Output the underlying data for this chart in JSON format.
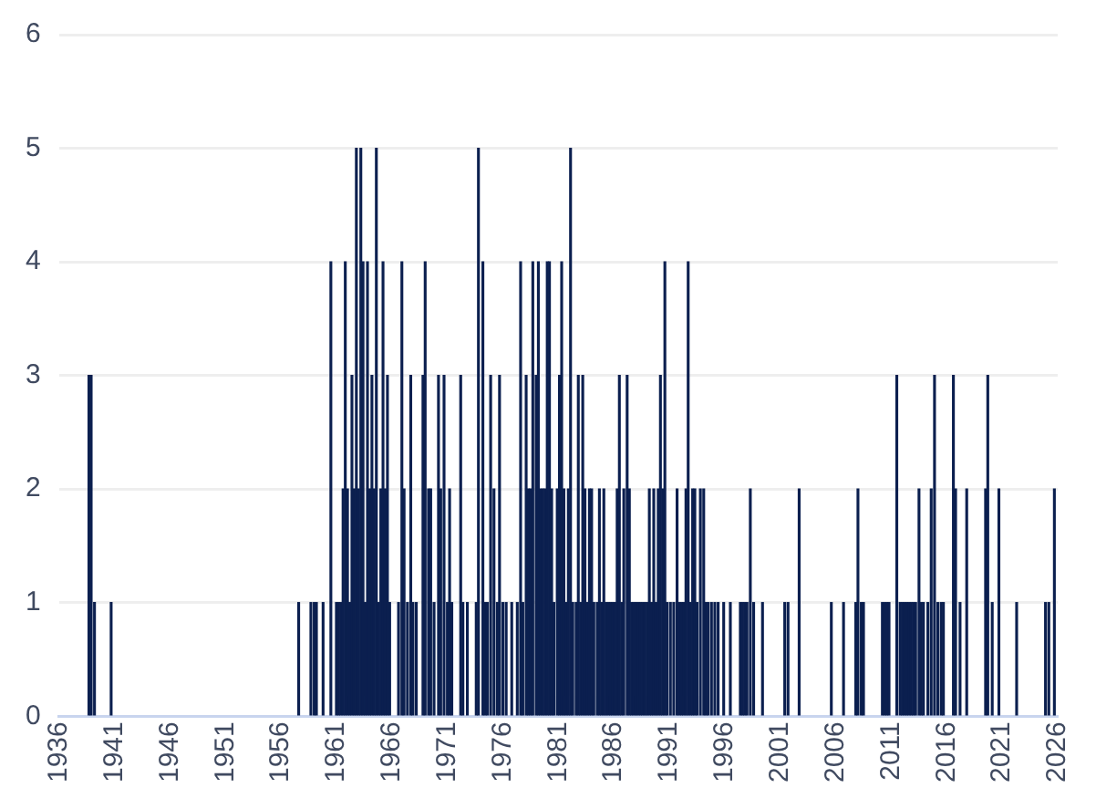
{
  "chart_data": {
    "type": "bar",
    "color": "#0b1f4f",
    "xlim": [
      1936,
      2026
    ],
    "xticks": [
      1936,
      1941,
      1946,
      1951,
      1956,
      1961,
      1966,
      1971,
      1976,
      1981,
      1986,
      1991,
      1996,
      2001,
      2006,
      2011,
      2016,
      2021,
      2026
    ],
    "ylim": [
      0,
      6
    ],
    "yticks": [
      0,
      1,
      2,
      3,
      4,
      5,
      6
    ],
    "grid": "y",
    "x": [
      1938.7,
      1938.9,
      1939.2,
      1940.7,
      1957.6,
      1958.7,
      1959.0,
      1959.2,
      1959.8,
      1960.5,
      1961.0,
      1961.2,
      1961.4,
      1961.6,
      1961.8,
      1962.0,
      1962.2,
      1962.4,
      1962.6,
      1962.8,
      1963.0,
      1963.2,
      1963.4,
      1963.6,
      1963.8,
      1964.0,
      1964.2,
      1964.4,
      1964.6,
      1964.8,
      1965.0,
      1965.2,
      1965.4,
      1965.6,
      1965.8,
      1966.6,
      1966.9,
      1967.1,
      1967.4,
      1967.7,
      1967.9,
      1968.2,
      1968.8,
      1969.0,
      1969.3,
      1969.5,
      1969.8,
      1970.2,
      1970.4,
      1970.7,
      1971.0,
      1971.2,
      1971.4,
      1972.2,
      1972.4,
      1972.8,
      1973.6,
      1973.8,
      1974.2,
      1974.4,
      1974.6,
      1974.9,
      1975.2,
      1975.5,
      1975.7,
      1976.0,
      1976.3,
      1976.8,
      1977.3,
      1977.6,
      1977.8,
      1978.1,
      1978.3,
      1978.5,
      1978.7,
      1979.0,
      1979.2,
      1979.4,
      1979.6,
      1979.8,
      1980.0,
      1980.2,
      1980.4,
      1980.6,
      1980.9,
      1981.1,
      1981.3,
      1981.5,
      1981.7,
      1981.9,
      1982.1,
      1982.3,
      1982.6,
      1982.8,
      1983.0,
      1983.2,
      1983.4,
      1983.6,
      1983.8,
      1984.0,
      1984.2,
      1984.5,
      1984.7,
      1984.9,
      1985.1,
      1985.3,
      1985.5,
      1985.7,
      1985.9,
      1986.1,
      1986.3,
      1986.5,
      1986.7,
      1986.9,
      1987.2,
      1987.4,
      1987.6,
      1987.8,
      1988.0,
      1988.2,
      1988.4,
      1988.6,
      1988.8,
      1989.0,
      1989.2,
      1989.4,
      1989.6,
      1989.8,
      1990.0,
      1990.2,
      1990.4,
      1990.6,
      1990.8,
      1991.1,
      1991.4,
      1991.7,
      1991.9,
      1992.1,
      1992.3,
      1992.5,
      1992.7,
      1992.9,
      1993.1,
      1993.3,
      1993.5,
      1993.8,
      1994.1,
      1994.3,
      1994.5,
      1994.8,
      1995.1,
      1995.4,
      1995.9,
      1996.5,
      1997.4,
      1997.6,
      1997.8,
      1998.0,
      1998.3,
      1998.6,
      1999.4,
      2001.4,
      2001.7,
      2002.7,
      2005.6,
      2006.7,
      2007.8,
      2008.0,
      2008.3,
      2008.5,
      2010.2,
      2010.4,
      2010.6,
      2010.8,
      2011.5,
      2011.8,
      2012.0,
      2012.2,
      2012.4,
      2012.6,
      2012.8,
      2013.0,
      2013.2,
      2013.5,
      2013.7,
      2013.9,
      2014.3,
      2014.6,
      2014.9,
      2015.2,
      2015.5,
      2015.7,
      2016.6,
      2016.8,
      2017.2,
      2017.8,
      2019.5,
      2019.7,
      2020.1,
      2020.7,
      2022.3,
      2024.9,
      2025.2,
      2025.7
    ],
    "values": [
      3,
      3,
      1,
      1,
      1,
      1,
      1,
      1,
      1,
      4,
      1,
      1,
      1,
      2,
      4,
      2,
      1,
      3,
      2,
      5,
      2,
      5,
      4,
      1,
      4,
      2,
      3,
      2,
      5,
      1,
      2,
      4,
      2,
      3,
      1,
      1,
      4,
      2,
      1,
      3,
      1,
      1,
      3,
      4,
      2,
      2,
      1,
      3,
      2,
      3,
      1,
      2,
      1,
      3,
      1,
      1,
      1,
      5,
      4,
      1,
      1,
      3,
      2,
      1,
      3,
      1,
      1,
      1,
      1,
      4,
      1,
      3,
      2,
      2,
      4,
      3,
      4,
      2,
      2,
      2,
      4,
      4,
      2,
      1,
      2,
      3,
      4,
      2,
      1,
      2,
      5,
      1,
      1,
      3,
      1,
      3,
      2,
      1,
      2,
      2,
      1,
      1,
      2,
      1,
      2,
      1,
      1,
      1,
      1,
      1,
      2,
      3,
      1,
      2,
      3,
      2,
      1,
      1,
      1,
      1,
      1,
      1,
      1,
      1,
      2,
      1,
      2,
      1,
      2,
      3,
      2,
      4,
      1,
      1,
      1,
      2,
      1,
      1,
      1,
      2,
      4,
      1,
      2,
      2,
      1,
      2,
      2,
      1,
      1,
      1,
      1,
      1,
      1,
      1,
      1,
      1,
      1,
      1,
      2,
      1,
      1,
      1,
      1,
      2,
      1,
      1,
      1,
      2,
      1,
      1,
      1,
      1,
      1,
      1,
      3,
      1,
      1,
      1,
      1,
      1,
      1,
      1,
      1,
      2,
      1,
      1,
      1,
      2,
      3,
      1,
      1,
      1,
      3,
      2,
      1,
      2,
      2,
      3,
      1,
      2,
      1,
      1,
      1,
      2
    ]
  }
}
